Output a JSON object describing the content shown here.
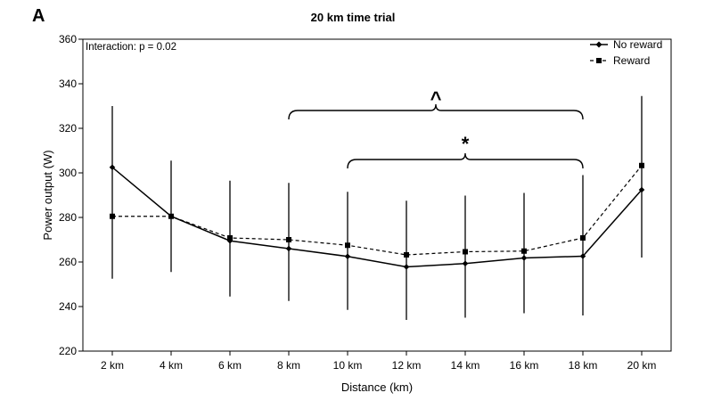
{
  "panel_label": "A",
  "chart_data": {
    "type": "line",
    "title": "20 km time trial",
    "xlabel": "Distance (km)",
    "ylabel": "Power output (W)",
    "annotation": "Interaction: p = 0.02",
    "categories": [
      "2 km",
      "4 km",
      "6 km",
      "8 km",
      "10 km",
      "12 km",
      "14 km",
      "16 km",
      "18 km",
      "20 km"
    ],
    "ylim": [
      220,
      360
    ],
    "yticks": [
      220,
      240,
      260,
      280,
      300,
      320,
      340,
      360
    ],
    "grid": false,
    "legend_position": "top-right",
    "series": [
      {
        "name": "No reward",
        "line_style": "solid",
        "marker": "diamond",
        "values": [
          302.5,
          280.5,
          269.5,
          266.0,
          262.5,
          257.8,
          259.3,
          261.8,
          262.6,
          292.4
        ],
        "error_upper": [
          330,
          305.5,
          296.5,
          295.5,
          291.5,
          287.5,
          289.8,
          291.0,
          299.0,
          334.5
        ],
        "error_lower": [
          252.5,
          255.5,
          244.5,
          242.5,
          238.5,
          234.0,
          235.0,
          237.0,
          236.0,
          262.0
        ]
      },
      {
        "name": "Reward",
        "line_style": "dashed",
        "marker": "square",
        "values": [
          280.5,
          280.5,
          270.8,
          270.0,
          267.5,
          263.2,
          264.6,
          264.9,
          270.8,
          303.3
        ]
      }
    ],
    "significance_brackets": [
      {
        "symbol": "^",
        "from": "8 km",
        "to": "18 km",
        "level": 328
      },
      {
        "symbol": "*",
        "from": "10 km",
        "to": "18 km",
        "level": 306
      }
    ],
    "colors": {
      "line": "#000000",
      "background": "#ffffff"
    }
  }
}
